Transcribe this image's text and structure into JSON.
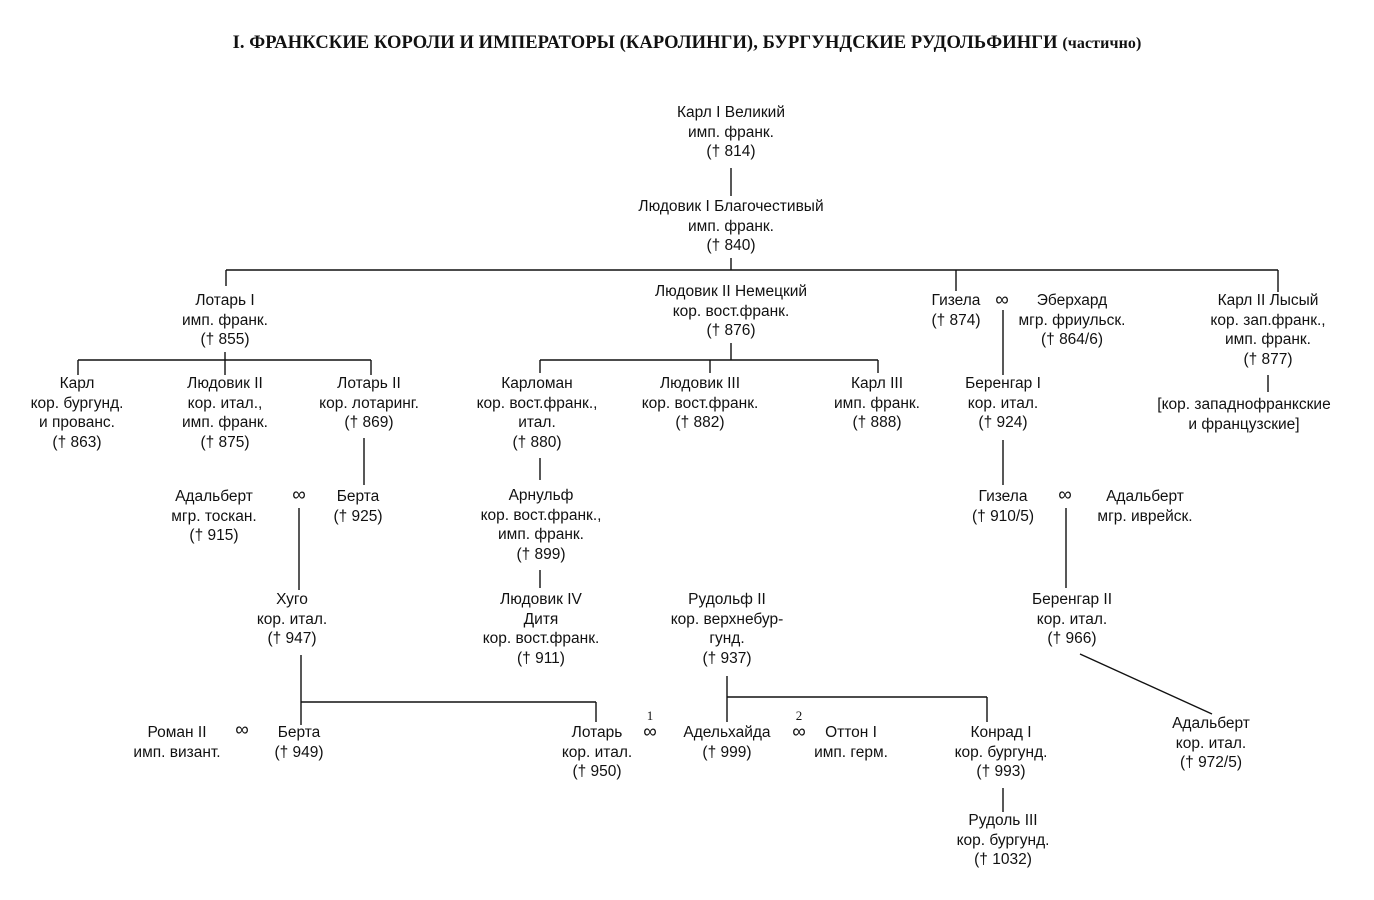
{
  "title": {
    "main": "I. ФРАНКСКИЕ КОРОЛИ И ИМПЕРАТОРЫ (КАРОЛИНГИ), БУРГУНДСКИЕ РУДОЛЬФИНГИ",
    "sub": "(частично)"
  },
  "marriage_symbol": "∞",
  "marriage_numbers": [
    "1",
    "2"
  ],
  "nodes": [
    {
      "id": "karl1",
      "lines": [
        "Карл I Великий",
        "имп. франк.",
        "(† 814)"
      ]
    },
    {
      "id": "ludovik1",
      "lines": [
        "Людовик I Благочестивый",
        "имп. франк.",
        "(† 840)"
      ]
    },
    {
      "id": "lotar1",
      "lines": [
        "Лотарь I",
        "имп. франк.",
        "(† 855)"
      ]
    },
    {
      "id": "ludovik2n",
      "lines": [
        "Людовик II Немецкий",
        "кор. вост.франк.",
        "(† 876)"
      ]
    },
    {
      "id": "gizela",
      "lines": [
        "Гизела",
        "(† 874)"
      ]
    },
    {
      "id": "eberhard",
      "lines": [
        "Эберхард",
        "мгр. фриульск.",
        "(† 864/6)"
      ]
    },
    {
      "id": "karl2",
      "lines": [
        "Карл II Лысый",
        "кор. зап.франк.,",
        "имп. франк.",
        "(† 877)"
      ]
    },
    {
      "id": "karl_burg",
      "lines": [
        "Карл",
        "кор. бургунд.",
        "и прованс.",
        "(† 863)"
      ]
    },
    {
      "id": "ludovik2",
      "lines": [
        "Людовик II",
        "кор. итал.,",
        "имп. франк.",
        "(† 875)"
      ]
    },
    {
      "id": "lotar2",
      "lines": [
        "Лотарь II",
        "кор. лотаринг.",
        "(† 869)"
      ]
    },
    {
      "id": "karloman",
      "lines": [
        "Карломан",
        "кор. вост.франк.,",
        "итал.",
        "(† 880)"
      ]
    },
    {
      "id": "ludovik3",
      "lines": [
        "Людовик III",
        "кор. вост.франк.",
        "(† 882)"
      ]
    },
    {
      "id": "karl3",
      "lines": [
        "Карл III",
        "имп. франк.",
        "(† 888)"
      ]
    },
    {
      "id": "berengar1",
      "lines": [
        "Беренгар I",
        "кор. итал.",
        "(† 924)"
      ]
    },
    {
      "id": "west",
      "lines": [
        "[кор. западнофранкские",
        "и французские]"
      ]
    },
    {
      "id": "adalbert_t",
      "lines": [
        "Адальберт",
        "мгр. тоскан.",
        "(† 915)"
      ]
    },
    {
      "id": "berta1",
      "lines": [
        "Берта",
        "(† 925)"
      ]
    },
    {
      "id": "arnulf",
      "lines": [
        "Арнульф",
        "кор. вост.франк.,",
        "имп. франк.",
        "(† 899)"
      ]
    },
    {
      "id": "gizela2",
      "lines": [
        "Гизела",
        "(† 910/5)"
      ]
    },
    {
      "id": "adalbert_i",
      "lines": [
        "Адальберт",
        "мгр. иврейск."
      ]
    },
    {
      "id": "hugo",
      "lines": [
        "Хуго",
        "кор. итал.",
        "(† 947)"
      ]
    },
    {
      "id": "ludovik4",
      "lines": [
        "Людовик IV",
        "Дитя",
        "кор. вост.франк.",
        "(† 911)"
      ]
    },
    {
      "id": "rudolf2",
      "lines": [
        "Рудольф II",
        "кор. верхнебур-",
        "гунд.",
        "(† 937)"
      ]
    },
    {
      "id": "berengar2",
      "lines": [
        "Беренгар II",
        "кор. итал.",
        "(† 966)"
      ]
    },
    {
      "id": "roman2",
      "lines": [
        "Роман II",
        "имп. визант."
      ]
    },
    {
      "id": "berta2",
      "lines": [
        "Берта",
        "(† 949)"
      ]
    },
    {
      "id": "lotar_i",
      "lines": [
        "Лотарь",
        "кор. итал.",
        "(† 950)"
      ]
    },
    {
      "id": "adelheid",
      "lines": [
        "Адельхайда",
        "(† 999)"
      ]
    },
    {
      "id": "otto1",
      "lines": [
        "Оттон I",
        "имп. герм."
      ]
    },
    {
      "id": "konrad1",
      "lines": [
        "Конрад I",
        "кор. бургунд.",
        "(† 993)"
      ]
    },
    {
      "id": "adalbert_k",
      "lines": [
        "Адальберт",
        "кор. итал.",
        "(† 972/5)"
      ]
    },
    {
      "id": "rudolf3",
      "lines": [
        "Рудоль III",
        "кор. бургунд.",
        "(† 1032)"
      ]
    }
  ]
}
